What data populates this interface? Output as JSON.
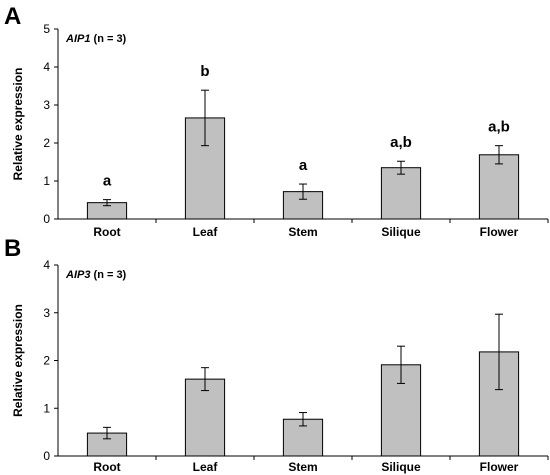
{
  "chart_data": [
    {
      "type": "bar",
      "panel": "A",
      "gene": "AIP1",
      "n_label": " (n = 3)",
      "ylabel": "Relative expression",
      "ylim": [
        0,
        5
      ],
      "yticks": [
        0,
        1,
        2,
        3,
        4,
        5
      ],
      "categories": [
        "Root",
        "Leaf",
        "Stem",
        "Silique",
        "Flower"
      ],
      "values": [
        0.43,
        2.66,
        0.72,
        1.35,
        1.69
      ],
      "errors": [
        0.08,
        0.73,
        0.2,
        0.17,
        0.24
      ],
      "significance": [
        "a",
        "b",
        "a",
        "a,b",
        "a,b"
      ]
    },
    {
      "type": "bar",
      "panel": "B",
      "gene": "AIP3",
      "n_label": " (n = 3)",
      "ylabel": "Relative expression",
      "ylim": [
        0,
        4
      ],
      "yticks": [
        0,
        1,
        2,
        3,
        4
      ],
      "categories": [
        "Root",
        "Leaf",
        "Stem",
        "Silique",
        "Flower"
      ],
      "values": [
        0.48,
        1.61,
        0.77,
        1.91,
        2.18
      ],
      "errors": [
        0.12,
        0.24,
        0.14,
        0.39,
        0.79
      ],
      "significance": []
    }
  ]
}
